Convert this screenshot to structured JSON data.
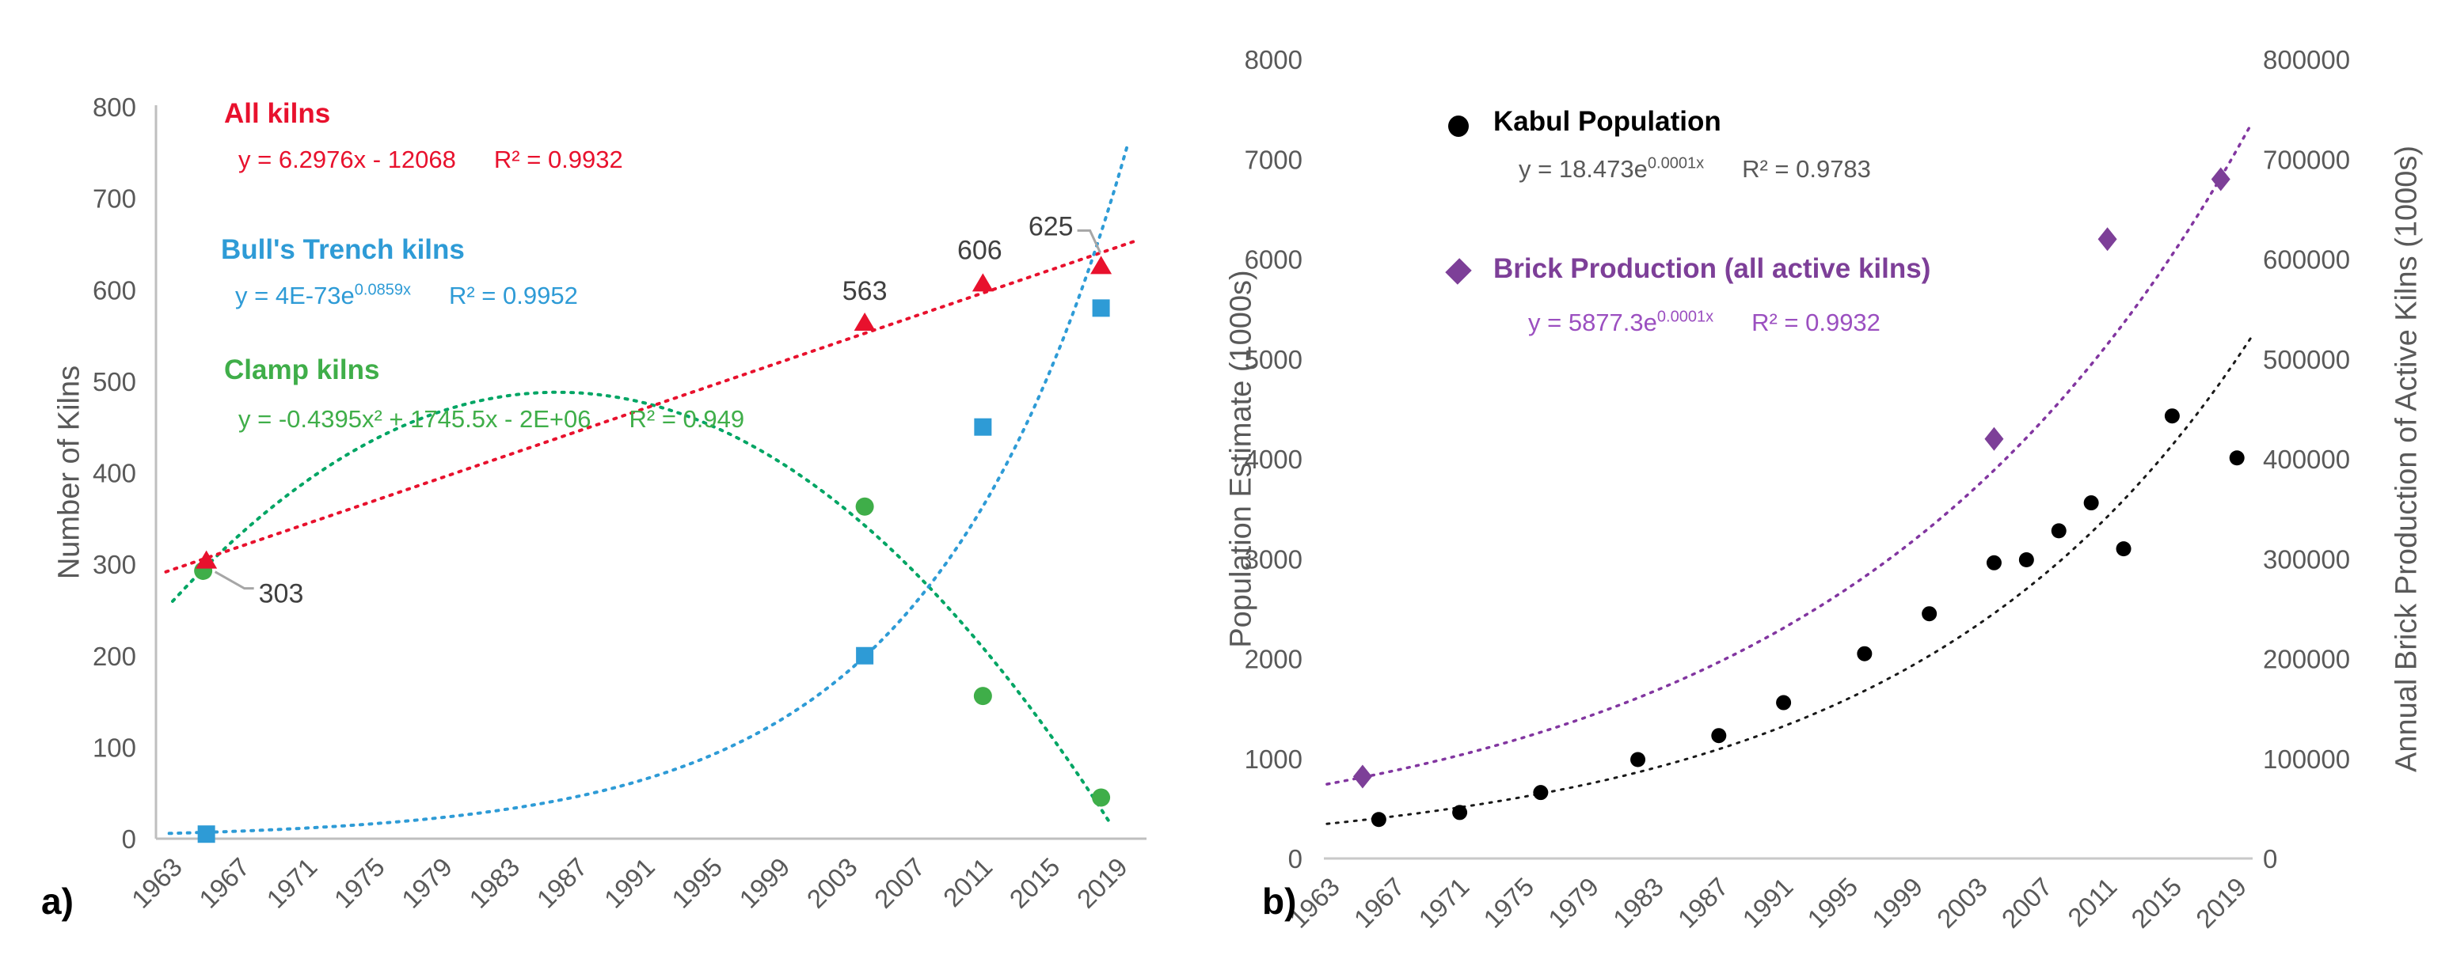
{
  "figure": {
    "background": "#FFFFFF",
    "panel_a_label": "a)",
    "panel_b_label": "b)"
  },
  "chart_data": [
    {
      "id": "a",
      "type": "scatter",
      "ylabel": "Number of Kilns",
      "ylim": [
        0,
        800
      ],
      "yticks": [
        0,
        100,
        200,
        300,
        400,
        500,
        600,
        700,
        800
      ],
      "xticks": [
        1963,
        1967,
        1971,
        1975,
        1979,
        1983,
        1987,
        1991,
        1995,
        1999,
        2003,
        2007,
        2011,
        2015,
        2019
      ],
      "grid": false,
      "legend_position": "top-left-inside",
      "axis_color": "#BFBFBF",
      "tick_color": "#595959",
      "data_label_color": "#404040",
      "series": [
        {
          "name": "All kilns",
          "marker": "triangle",
          "color": "#E8112D",
          "trend_color": "#E8112D",
          "eq_pre": "y = 6.2976x - 12068",
          "eq_sup": "",
          "r2": "R² = 0.9932",
          "points": [
            {
              "x": 1965,
              "y": 303,
              "label": "303"
            },
            {
              "x": 2004,
              "y": 563,
              "label": "563"
            },
            {
              "x": 2011,
              "y": 606,
              "label": "606"
            },
            {
              "x": 2018,
              "y": 625,
              "label": "625"
            }
          ],
          "trend": {
            "fn": "linear",
            "m": 6.2976,
            "c": -12068,
            "range": [
              1962.6,
              2020.3
            ]
          }
        },
        {
          "name": "Bull's Trench kilns",
          "marker": "square",
          "color": "#2E9BD6",
          "trend_color": "#2E9BD6",
          "eq_pre": "y = 4E-73e",
          "eq_sup": "0.0859x",
          "r2": "R² = 0.9952",
          "points": [
            {
              "x": 1965,
              "y": 5
            },
            {
              "x": 2004,
              "y": 200
            },
            {
              "x": 2011,
              "y": 450
            },
            {
              "x": 2018,
              "y": 580
            }
          ],
          "trend": {
            "fn": "exp",
            "lnA": -166.85,
            "b": 0.0859,
            "ymax": 768,
            "range": [
              1962.8,
              2019.6
            ]
          }
        },
        {
          "name": "Clamp kilns",
          "marker": "circle",
          "color": "#3FAE49",
          "trend_color": "#00A564",
          "eq_pre": "y = -0.4395x² + 1745.5x - 2E+06",
          "eq_sup": "",
          "r2": "R² = 0.949",
          "points": [
            {
              "x": 1965,
              "y": 298
            },
            {
              "x": 2004,
              "y": 363
            },
            {
              "x": 2011,
              "y": 156
            },
            {
              "x": 2018,
              "y": 45
            }
          ],
          "trend": {
            "fn": "quad",
            "a": -0.4395,
            "h": 1985.8,
            "k": 488,
            "range": [
              1963,
              2018.6
            ]
          }
        }
      ]
    },
    {
      "id": "b",
      "type": "scatter",
      "ylabel_left": "Population Estimate (1000s)",
      "ylabel_right": "Annual Brick Production of Active Kilns (1000s)",
      "ylim_left": [
        0,
        8000
      ],
      "ylim_right": [
        0,
        800000
      ],
      "yticks_left": [
        0,
        1000,
        2000,
        3000,
        4000,
        5000,
        6000,
        7000,
        8000
      ],
      "yticks_right": [
        0,
        100000,
        200000,
        300000,
        400000,
        500000,
        600000,
        700000,
        800000
      ],
      "xticks": [
        1963,
        1967,
        1971,
        1975,
        1979,
        1983,
        1987,
        1991,
        1995,
        1999,
        2003,
        2007,
        2011,
        2015,
        2019
      ],
      "grid": false,
      "legend_position": "top-left-inside",
      "axis_color": "#C9C9C9",
      "tick_color": "#595959",
      "series": [
        {
          "name": "Kabul Population",
          "marker": "dot",
          "color": "#000000",
          "trend_color": "#1A1A1A",
          "axis": "left",
          "eq_pre": "y = 18.473e",
          "eq_sup": "0.0001x",
          "r2": "R² = 0.9783",
          "eq_color": "#595959",
          "points": [
            {
              "x": 1966,
              "y": 390
            },
            {
              "x": 1971,
              "y": 460
            },
            {
              "x": 1976,
              "y": 660
            },
            {
              "x": 1982,
              "y": 990
            },
            {
              "x": 1987,
              "y": 1230
            },
            {
              "x": 1991,
              "y": 1560
            },
            {
              "x": 1996,
              "y": 2050
            },
            {
              "x": 2000,
              "y": 2450
            },
            {
              "x": 2004,
              "y": 2960
            },
            {
              "x": 2006,
              "y": 2990
            },
            {
              "x": 2008,
              "y": 3280
            },
            {
              "x": 2010,
              "y": 3560
            },
            {
              "x": 2012,
              "y": 3100
            },
            {
              "x": 2015,
              "y": 4430
            },
            {
              "x": 2019,
              "y": 4010
            }
          ],
          "trend": {
            "fn": "expT",
            "a": 350,
            "b": 0.0475,
            "t0": 1963,
            "range": [
              1962.8,
              2020.2
            ]
          }
        },
        {
          "name": "Brick Production (all active kilns)",
          "marker": "diamond",
          "color": "#7D3F98",
          "trend_color": "#8236A0",
          "axis": "right",
          "eq_pre": "y = 5877.3e",
          "eq_sup": "0.0001x",
          "r2": "R² = 0.9932",
          "eq_color": "#9B4FC0",
          "points": [
            {
              "x": 1965,
              "y": 82000
            },
            {
              "x": 2004,
              "y": 420000
            },
            {
              "x": 2011,
              "y": 620000
            },
            {
              "x": 2018,
              "y": 680000
            }
          ],
          "trend": {
            "fn": "expT",
            "a": 75000,
            "b": 0.04013,
            "t0": 1963,
            "range": [
              1962.8,
              2020
            ]
          }
        }
      ]
    }
  ]
}
